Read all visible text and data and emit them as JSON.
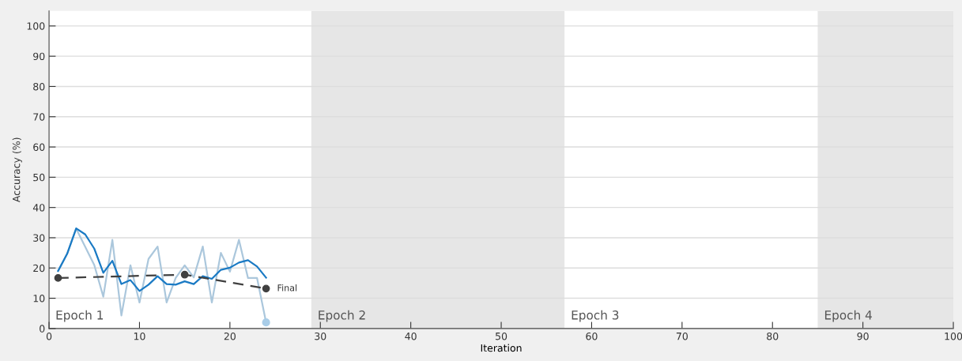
{
  "chart_data": {
    "type": "line",
    "xlabel": "Iteration",
    "ylabel": "Accuracy (%)",
    "xlim": [
      0,
      100
    ],
    "xticks": [
      0,
      10,
      20,
      30,
      40,
      50,
      60,
      70,
      80,
      90,
      100
    ],
    "ylim": [
      0,
      105
    ],
    "yticks": [
      0,
      10,
      20,
      30,
      40,
      50,
      60,
      70,
      80,
      90,
      100
    ],
    "grid": "y",
    "series": [
      {
        "color": "#abc7dc",
        "x": [
          1,
          2,
          3,
          4,
          5,
          6,
          7,
          8,
          9,
          10,
          11,
          12,
          13,
          14,
          15,
          16,
          17,
          18,
          19,
          20,
          21,
          22,
          23,
          24
        ],
        "values": [
          19,
          24.7,
          33,
          27,
          21,
          10.5,
          29.3,
          4.3,
          20.9,
          8.6,
          23,
          27.1,
          8.6,
          16.7,
          20.9,
          16.9,
          27.1,
          8.6,
          25,
          18.8,
          29.3,
          16.7,
          16.7,
          2
        ],
        "marker": "none",
        "line_style": "solid"
      },
      {
        "color": "#1a7ac4",
        "x": [
          1,
          2,
          3,
          4,
          5,
          6,
          7,
          8,
          9,
          10,
          11,
          12,
          13,
          14,
          15,
          16,
          17,
          18,
          19,
          20,
          21,
          22,
          23,
          24
        ],
        "values": [
          19,
          24.7,
          33.1,
          31.1,
          26.4,
          18.4,
          22.4,
          14.7,
          16,
          12.4,
          14.5,
          17.3,
          14.7,
          14.5,
          15.6,
          14.7,
          17.3,
          16.4,
          19.4,
          20.1,
          21.8,
          22.6,
          20.5,
          16.8
        ],
        "marker": "none",
        "line_style": "solid"
      },
      {
        "color": "#404040",
        "x": [
          1,
          15,
          24
        ],
        "values": [
          16.7,
          17.8,
          13.2
        ],
        "marker": "circle",
        "line_style": "dashed"
      },
      {
        "type": "scatter",
        "color": "#a9cde8",
        "x": [
          24
        ],
        "values": [
          2
        ],
        "marker": "circle"
      }
    ],
    "bands": [
      {
        "axis": "x",
        "from": 29,
        "to": 57,
        "label": "Epoch 2",
        "color": "#e6e6e6"
      },
      {
        "axis": "x",
        "from": 85,
        "to": 100,
        "label": "Epoch 4",
        "color": "#e6e6e6"
      }
    ],
    "annotations": [
      "Epoch 1",
      "Epoch 3",
      {
        "text": "Final",
        "x": 24,
        "y": 13.2
      }
    ]
  }
}
